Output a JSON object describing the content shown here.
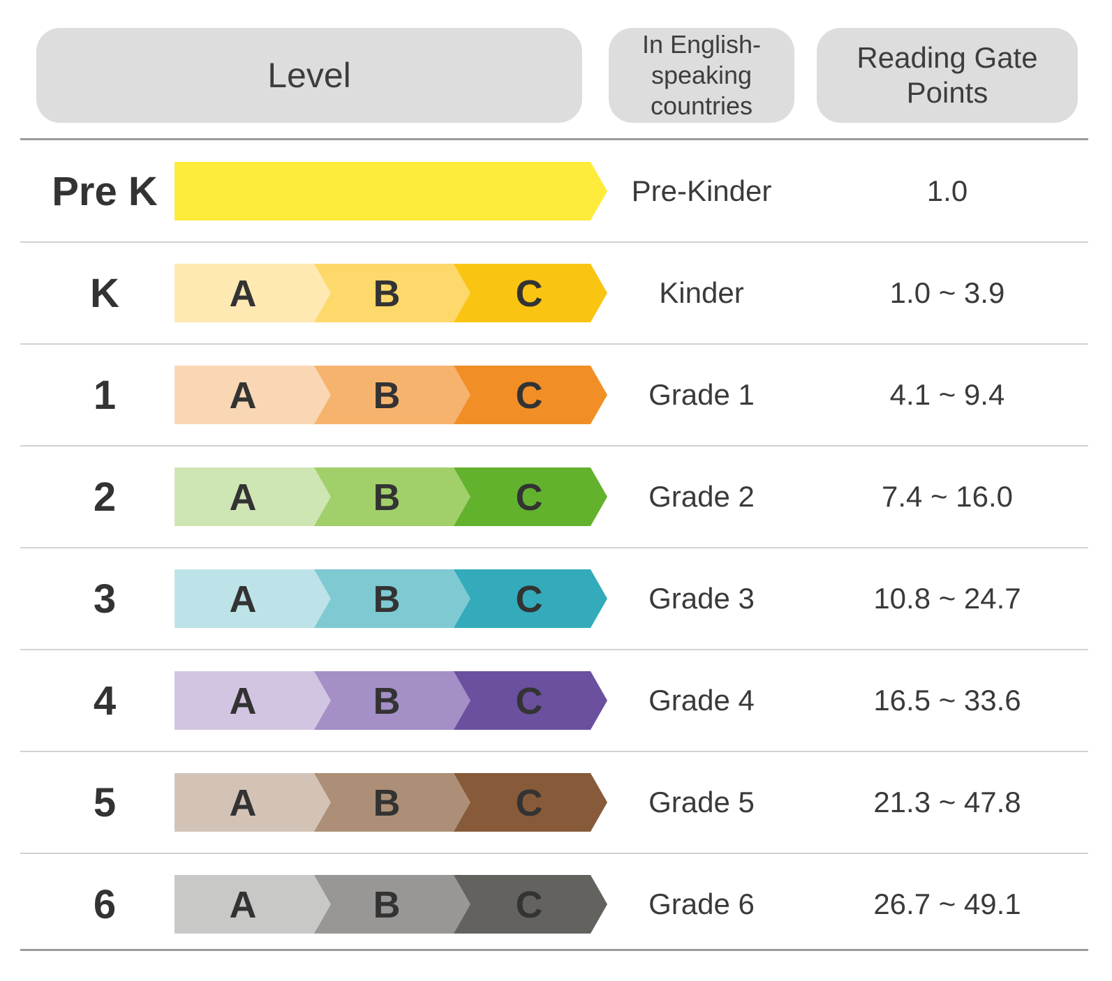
{
  "header": {
    "level": "Level",
    "english": "In English-speaking countries",
    "reading_gate": "Reading Gate Points"
  },
  "rows": [
    {
      "level": "Pre K",
      "english": "Pre-Kinder",
      "points": "1.0",
      "segments": [],
      "colors": [
        "#FFEB3B"
      ]
    },
    {
      "level": "K",
      "english": "Kinder",
      "points": "1.0 ~ 3.9",
      "segments": [
        "A",
        "B",
        "C"
      ],
      "colors": [
        "#FFE9B3",
        "#FDD86A",
        "#FAC412"
      ]
    },
    {
      "level": "1",
      "english": "Grade 1",
      "points": "4.1 ~ 9.4",
      "segments": [
        "A",
        "B",
        "C"
      ],
      "colors": [
        "#FAD7B4",
        "#F6B36E",
        "#F18F26"
      ]
    },
    {
      "level": "2",
      "english": "Grade 2",
      "points": "7.4 ~ 16.0",
      "segments": [
        "A",
        "B",
        "C"
      ],
      "colors": [
        "#CEE5B4",
        "#A1CF6A",
        "#63B22E"
      ]
    },
    {
      "level": "3",
      "english": "Grade 3",
      "points": "10.8 ~ 24.7",
      "segments": [
        "A",
        "B",
        "C"
      ],
      "colors": [
        "#BDE3E8",
        "#7EC9D2",
        "#33ABBA"
      ]
    },
    {
      "level": "4",
      "english": "Grade 4",
      "points": "16.5 ~ 33.6",
      "segments": [
        "A",
        "B",
        "C"
      ],
      "colors": [
        "#D2C5E2",
        "#A48FC6",
        "#6A509F"
      ]
    },
    {
      "level": "5",
      "english": "Grade 5",
      "points": "21.3 ~ 47.8",
      "segments": [
        "A",
        "B",
        "C"
      ],
      "colors": [
        "#D3C3B6",
        "#AC8F76",
        "#875B39"
      ]
    },
    {
      "level": "6",
      "english": "Grade 6",
      "points": "26.7 ~ 49.1",
      "segments": [
        "A",
        "B",
        "C"
      ],
      "colors": [
        "#C8C8C7",
        "#989795",
        "#63625E"
      ]
    }
  ]
}
